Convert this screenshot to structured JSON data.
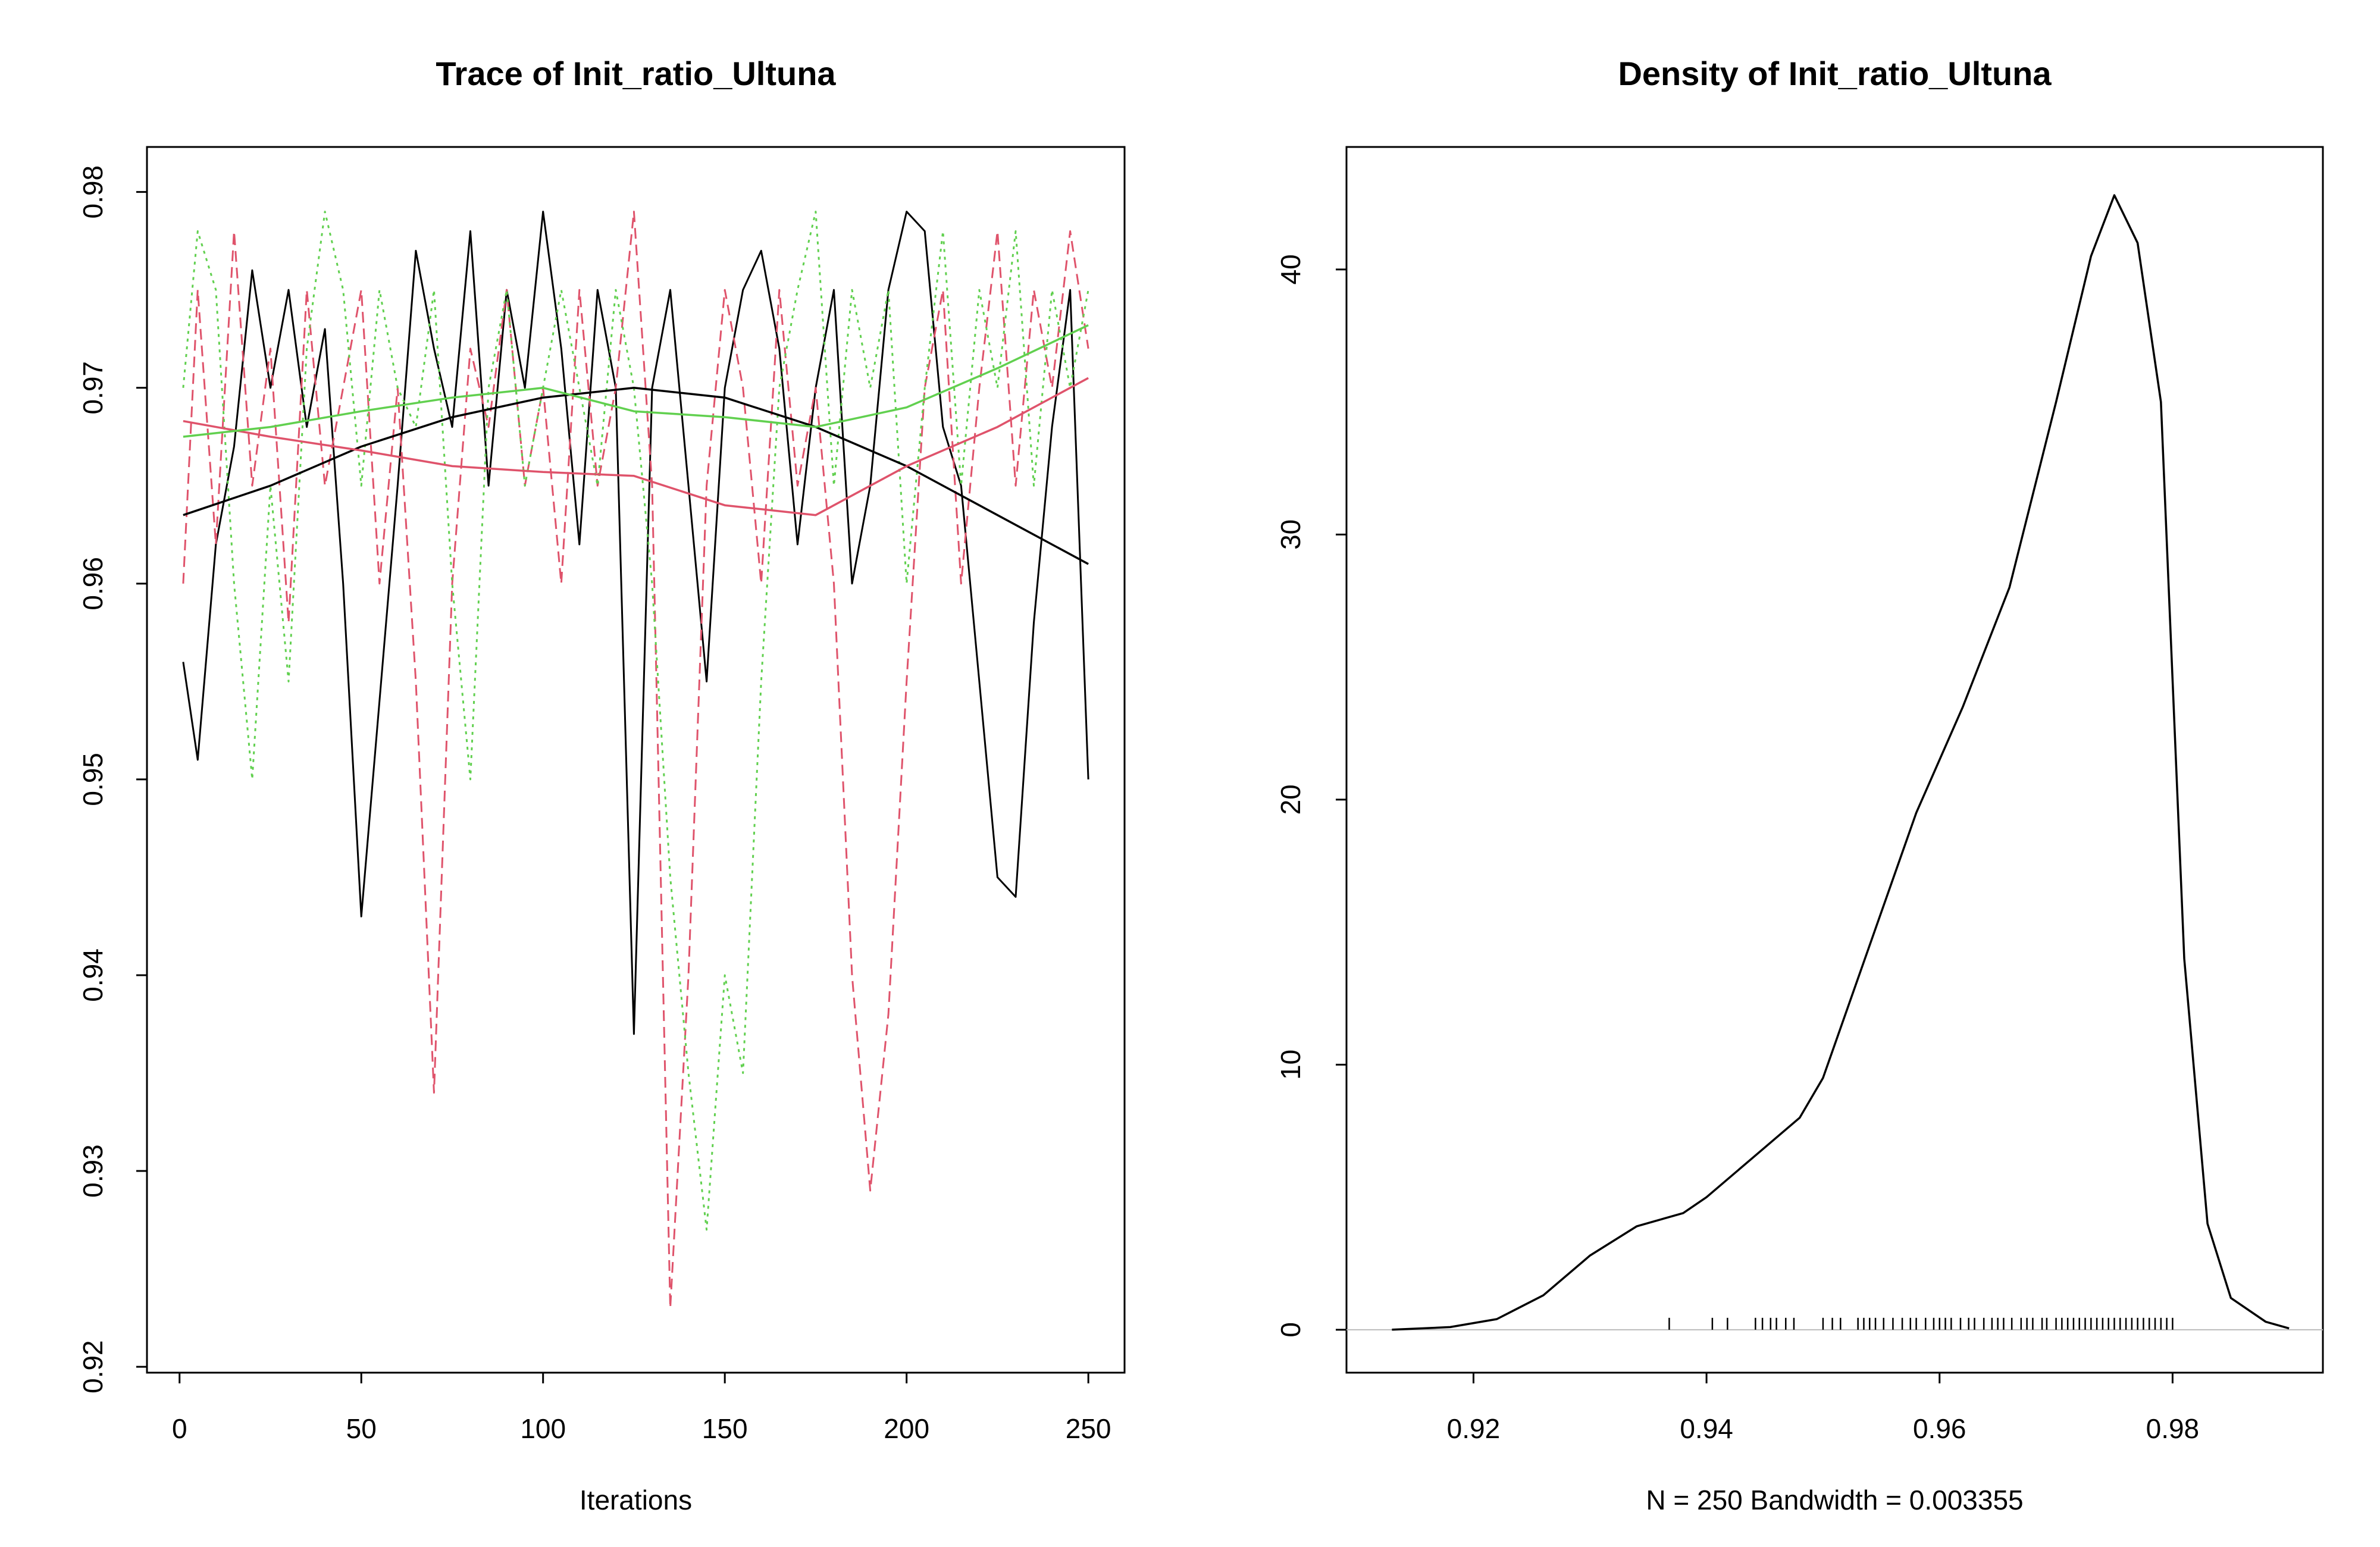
{
  "chart_data": [
    {
      "type": "line",
      "title": "Trace of Init_ratio_Ultuna",
      "xlabel": "Iterations",
      "xlim": [
        -8.96,
        259.96
      ],
      "ylim": [
        0.9197,
        0.9823
      ],
      "xticks": [
        0,
        50,
        100,
        150,
        200,
        250
      ],
      "yticks": [
        0.92,
        0.93,
        0.94,
        0.95,
        0.96,
        0.97,
        0.98
      ],
      "x": [
        1,
        5,
        10,
        15,
        20,
        25,
        30,
        35,
        40,
        45,
        50,
        55,
        60,
        65,
        70,
        75,
        80,
        85,
        90,
        95,
        100,
        105,
        110,
        115,
        120,
        125,
        130,
        135,
        140,
        145,
        150,
        155,
        160,
        165,
        170,
        175,
        180,
        185,
        190,
        195,
        200,
        205,
        210,
        215,
        220,
        225,
        230,
        235,
        240,
        245,
        250
      ],
      "series": [
        {
          "color": "#000000",
          "line_style": "solid",
          "values": [
            0.956,
            0.951,
            0.962,
            0.967,
            0.976,
            0.97,
            0.975,
            0.968,
            0.973,
            0.96,
            0.943,
            0.954,
            0.965,
            0.977,
            0.972,
            0.968,
            0.978,
            0.965,
            0.975,
            0.97,
            0.979,
            0.972,
            0.962,
            0.975,
            0.97,
            0.937,
            0.97,
            0.975,
            0.965,
            0.955,
            0.97,
            0.975,
            0.977,
            0.972,
            0.962,
            0.97,
            0.975,
            0.96,
            0.965,
            0.975,
            0.979,
            0.978,
            0.968,
            0.965,
            0.955,
            0.945,
            0.944,
            0.958,
            0.968,
            0.975,
            0.95
          ]
        },
        {
          "color": "#DF536B",
          "line_style": "dashed",
          "values": [
            0.96,
            0.975,
            0.962,
            0.978,
            0.965,
            0.972,
            0.958,
            0.975,
            0.965,
            0.97,
            0.975,
            0.96,
            0.97,
            0.955,
            0.934,
            0.96,
            0.972,
            0.968,
            0.975,
            0.965,
            0.97,
            0.96,
            0.975,
            0.965,
            0.97,
            0.979,
            0.965,
            0.923,
            0.94,
            0.965,
            0.975,
            0.97,
            0.96,
            0.975,
            0.965,
            0.97,
            0.96,
            0.94,
            0.929,
            0.938,
            0.955,
            0.97,
            0.975,
            0.96,
            0.97,
            0.978,
            0.965,
            0.975,
            0.97,
            0.978,
            0.972
          ]
        },
        {
          "color": "#61D04F",
          "line_style": "dotted",
          "values": [
            0.97,
            0.978,
            0.975,
            0.96,
            0.95,
            0.965,
            0.955,
            0.972,
            0.979,
            0.975,
            0.965,
            0.975,
            0.97,
            0.968,
            0.975,
            0.96,
            0.95,
            0.97,
            0.975,
            0.965,
            0.97,
            0.975,
            0.97,
            0.965,
            0.975,
            0.97,
            0.96,
            0.945,
            0.935,
            0.927,
            0.94,
            0.935,
            0.955,
            0.97,
            0.975,
            0.979,
            0.965,
            0.975,
            0.97,
            0.975,
            0.96,
            0.97,
            0.978,
            0.965,
            0.975,
            0.97,
            0.978,
            0.965,
            0.975,
            0.97,
            0.975
          ]
        }
      ],
      "smooth_x": [
        1,
        25,
        50,
        75,
        100,
        125,
        150,
        175,
        200,
        225,
        250
      ],
      "smooth_series": [
        {
          "color": "#000000",
          "values": [
            0.9635,
            0.965,
            0.967,
            0.9685,
            0.9695,
            0.97,
            0.9695,
            0.968,
            0.966,
            0.9635,
            0.961
          ]
        },
        {
          "color": "#DF536B",
          "values": [
            0.9683,
            0.9675,
            0.9668,
            0.966,
            0.9657,
            0.9655,
            0.964,
            0.9635,
            0.966,
            0.968,
            0.9705
          ]
        },
        {
          "color": "#61D04F",
          "values": [
            0.9675,
            0.968,
            0.9688,
            0.9695,
            0.97,
            0.9688,
            0.9685,
            0.968,
            0.969,
            0.971,
            0.9732
          ]
        }
      ]
    },
    {
      "type": "density",
      "title": "Density of Init_ratio_Ultuna",
      "xlabel": "N = 250   Bandwidth = 0.003355",
      "xlim": [
        0.9091,
        0.9929
      ],
      "ylim": [
        -1.62,
        44.62
      ],
      "xticks": [
        0.92,
        0.94,
        0.96,
        0.98
      ],
      "yticks": [
        0,
        10,
        20,
        30,
        40
      ],
      "x": [
        0.913,
        0.918,
        0.922,
        0.926,
        0.93,
        0.934,
        0.938,
        0.94,
        0.944,
        0.948,
        0.95,
        0.954,
        0.958,
        0.962,
        0.966,
        0.97,
        0.973,
        0.975,
        0.977,
        0.979,
        0.981,
        0.983,
        0.985,
        0.988,
        0.99
      ],
      "color": "#000000",
      "values": [
        0,
        0.1,
        0.4,
        1.3,
        2.8,
        3.9,
        4.4,
        5.0,
        6.5,
        8.0,
        9.5,
        14.5,
        19.5,
        23.5,
        28,
        35,
        40.5,
        42.8,
        41,
        35,
        14,
        4,
        1.2,
        0.3,
        0.05
      ],
      "rug": [
        0.9368,
        0.9405,
        0.9418,
        0.9442,
        0.9448,
        0.9455,
        0.946,
        0.9468,
        0.9475,
        0.95,
        0.9508,
        0.9515,
        0.953,
        0.9535,
        0.954,
        0.9545,
        0.9552,
        0.956,
        0.9568,
        0.9575,
        0.958,
        0.9588,
        0.9595,
        0.96,
        0.9605,
        0.961,
        0.9618,
        0.9625,
        0.963,
        0.9638,
        0.9645,
        0.965,
        0.9655,
        0.9662,
        0.967,
        0.9675,
        0.968,
        0.9688,
        0.9692,
        0.97,
        0.9705,
        0.971,
        0.9715,
        0.972,
        0.9725,
        0.973,
        0.9735,
        0.974,
        0.9745,
        0.975,
        0.9755,
        0.976,
        0.9765,
        0.977,
        0.9775,
        0.978,
        0.9785,
        0.979,
        0.9795,
        0.98
      ]
    }
  ]
}
